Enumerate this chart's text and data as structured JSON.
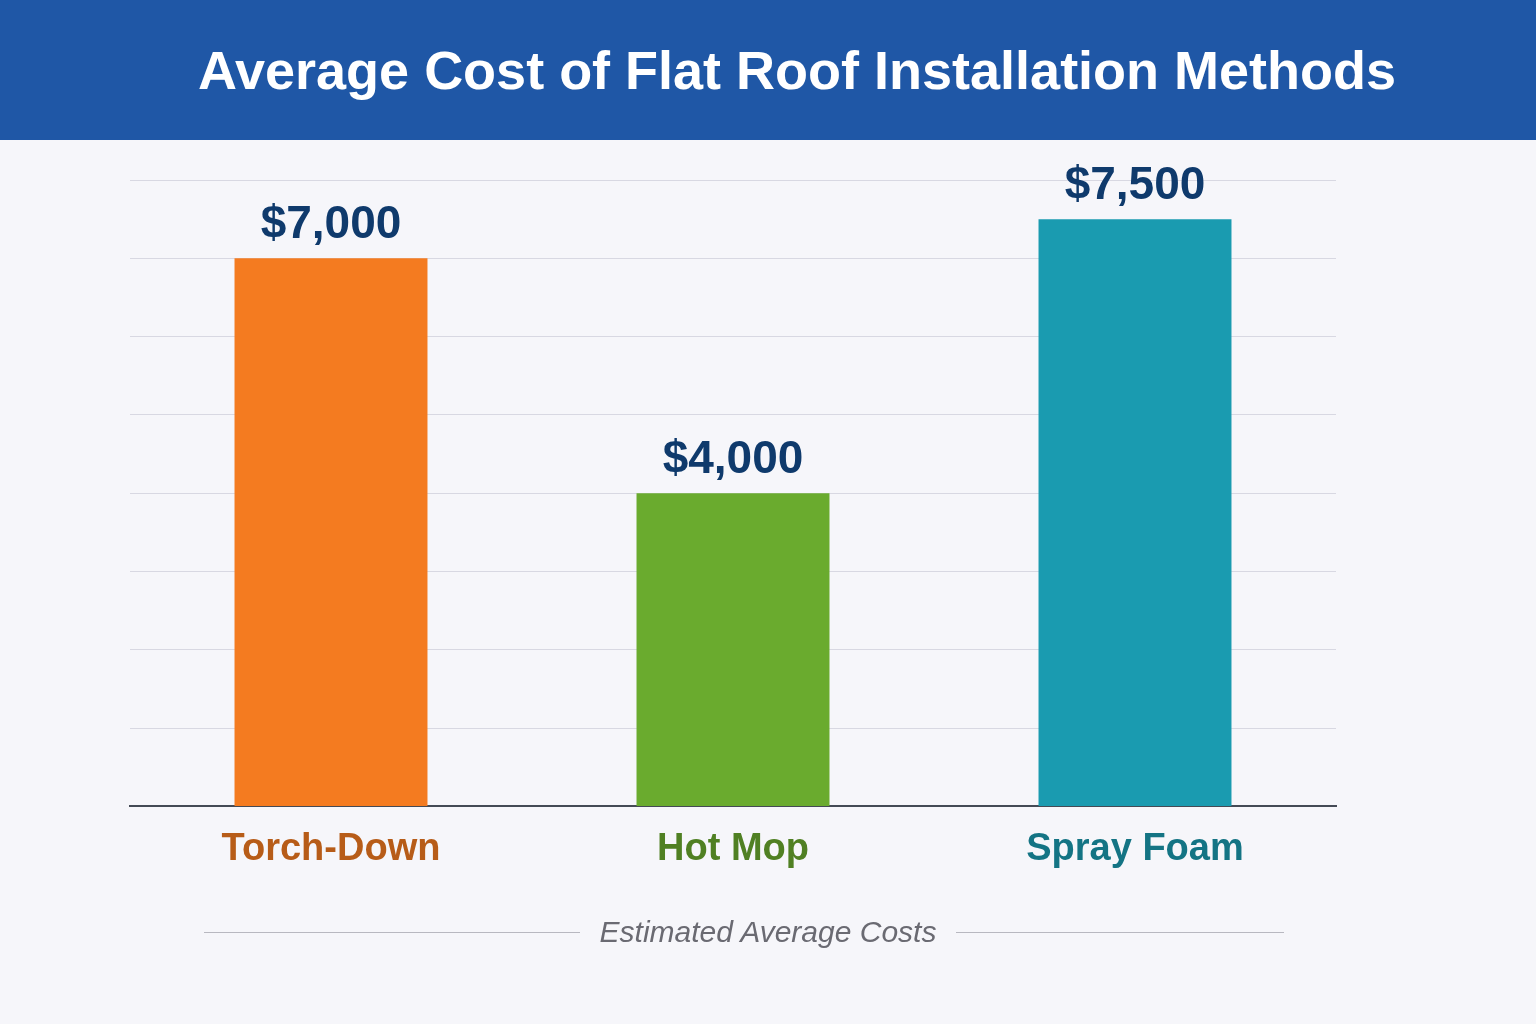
{
  "chart_data": {
    "type": "bar",
    "title": "Average Cost of Flat Roof Installation Methods",
    "categories": [
      "Torch-Down",
      "Hot Mop",
      "Spray Foam"
    ],
    "values": [
      7000,
      4000,
      7500
    ],
    "value_labels": [
      "$7,000",
      "$4,000",
      "$7,500"
    ],
    "colors": [
      "#f47b20",
      "#6aab2e",
      "#1a9bb0"
    ],
    "grid": "y",
    "tick_labels": "x",
    "annotations": [
      "Estimated Average Costs"
    ]
  }
}
